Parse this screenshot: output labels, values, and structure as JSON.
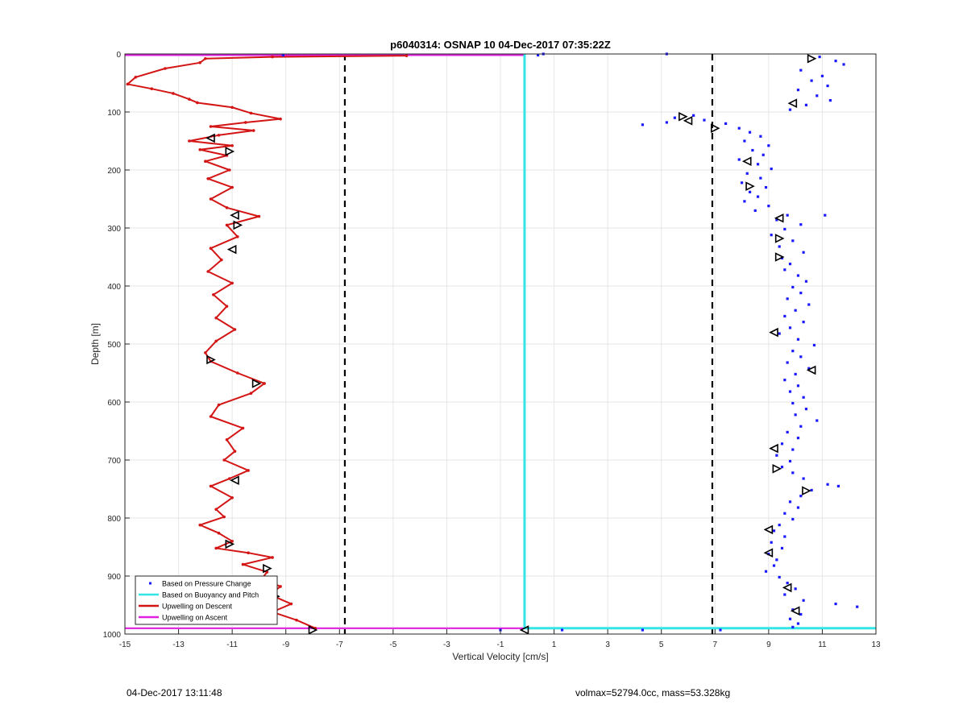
{
  "chart_data": {
    "type": "scatter",
    "title": "p6040314: OSNAP 10 04-Dec-2017 07:35:22Z",
    "xlabel": "Vertical Velocity [cm/s]",
    "ylabel": "Depth [m]",
    "xlim": [
      -15,
      13
    ],
    "ylim": [
      0,
      1000
    ],
    "y_reversed": true,
    "grid": true,
    "xticks": [
      -15,
      -13,
      -11,
      -9,
      -7,
      -5,
      -3,
      -1,
      1,
      3,
      5,
      7,
      9,
      11,
      13
    ],
    "yticks": [
      0,
      100,
      200,
      300,
      400,
      500,
      600,
      700,
      800,
      900,
      1000
    ],
    "legend": {
      "placement": "bottom-left",
      "entries": [
        {
          "label": "Based on Pressure Change",
          "color": "#1a1aff",
          "style": "marker"
        },
        {
          "label": "Based on Buoyancy and Pitch",
          "color": "#33e5e5",
          "style": "line"
        },
        {
          "label": "Upwelling on Descent",
          "color": "#d41515",
          "style": "line"
        },
        {
          "label": "Upwelling on Ascent",
          "color": "#e020e0",
          "style": "line"
        }
      ]
    },
    "threshold_lines": [
      {
        "x": -6.8,
        "style": "dashed",
        "color": "#000000"
      },
      {
        "x": 6.9,
        "style": "dashed",
        "color": "#000000"
      }
    ],
    "series": [
      {
        "name": "Upwelling on Descent",
        "color": "#d41515",
        "points": [
          [
            -4.5,
            3
          ],
          [
            -9.5,
            5
          ],
          [
            -12.0,
            8
          ],
          [
            -12.2,
            15
          ],
          [
            -13.5,
            25
          ],
          [
            -14.6,
            40
          ],
          [
            -14.9,
            52
          ],
          [
            -14.0,
            60
          ],
          [
            -13.2,
            68
          ],
          [
            -12.6,
            78
          ],
          [
            -12.3,
            84
          ],
          [
            -11.0,
            92
          ],
          [
            -10.3,
            102
          ],
          [
            -9.2,
            112
          ],
          [
            -10.5,
            118
          ],
          [
            -11.8,
            125
          ],
          [
            -10.2,
            132
          ],
          [
            -11.5,
            140
          ],
          [
            -12.6,
            150
          ],
          [
            -11.0,
            158
          ],
          [
            -12.2,
            165
          ],
          [
            -11.2,
            175
          ],
          [
            -12.0,
            185
          ],
          [
            -11.1,
            200
          ],
          [
            -11.9,
            215
          ],
          [
            -11.0,
            230
          ],
          [
            -11.8,
            250
          ],
          [
            -11.2,
            265
          ],
          [
            -10.0,
            280
          ],
          [
            -11.2,
            295
          ],
          [
            -10.8,
            315
          ],
          [
            -11.8,
            335
          ],
          [
            -11.4,
            355
          ],
          [
            -11.9,
            375
          ],
          [
            -11.0,
            395
          ],
          [
            -11.7,
            415
          ],
          [
            -11.2,
            435
          ],
          [
            -11.6,
            455
          ],
          [
            -10.9,
            475
          ],
          [
            -11.6,
            495
          ],
          [
            -12.0,
            515
          ],
          [
            -11.8,
            530
          ],
          [
            -10.8,
            550
          ],
          [
            -9.8,
            568
          ],
          [
            -10.3,
            585
          ],
          [
            -11.5,
            605
          ],
          [
            -11.8,
            625
          ],
          [
            -10.6,
            645
          ],
          [
            -11.2,
            665
          ],
          [
            -10.9,
            685
          ],
          [
            -11.3,
            700
          ],
          [
            -10.4,
            718
          ],
          [
            -11.1,
            732
          ],
          [
            -11.8,
            745
          ],
          [
            -11.0,
            765
          ],
          [
            -11.6,
            785
          ],
          [
            -11.3,
            798
          ],
          [
            -12.2,
            812
          ],
          [
            -11.5,
            826
          ],
          [
            -11.0,
            840
          ],
          [
            -11.6,
            852
          ],
          [
            -10.4,
            860
          ],
          [
            -9.5,
            868
          ],
          [
            -10.6,
            880
          ],
          [
            -9.7,
            893
          ],
          [
            -9.9,
            905
          ],
          [
            -9.2,
            918
          ],
          [
            -9.6,
            932
          ],
          [
            -8.8,
            948
          ],
          [
            -9.5,
            962
          ],
          [
            -8.6,
            976
          ],
          [
            -7.9,
            990
          ]
        ]
      },
      {
        "name": "Upwelling on Ascent",
        "color": "#e020e0",
        "points": [
          [
            -15,
            2
          ],
          [
            -12,
            2
          ],
          [
            -8,
            2
          ],
          [
            -4,
            2
          ],
          [
            -0.1,
            2
          ],
          [
            -15,
            990
          ],
          [
            -10,
            990
          ],
          [
            -4,
            990
          ],
          [
            -0.1,
            990
          ]
        ]
      },
      {
        "name": "Based on Buoyancy and Pitch",
        "color": "#33e5e5",
        "points": [
          [
            -0.1,
            0
          ],
          [
            -0.1,
            200
          ],
          [
            -0.1,
            400
          ],
          [
            -0.1,
            600
          ],
          [
            -0.1,
            800
          ],
          [
            -0.1,
            990
          ],
          [
            13,
            990
          ]
        ]
      },
      {
        "name": "Based on Pressure Change",
        "color": "#1a1aff",
        "points": [
          [
            10.9,
            5
          ],
          [
            11.5,
            12
          ],
          [
            11.8,
            18
          ],
          [
            10.2,
            28
          ],
          [
            11.0,
            38
          ],
          [
            10.6,
            46
          ],
          [
            11.2,
            55
          ],
          [
            10.1,
            62
          ],
          [
            10.8,
            72
          ],
          [
            11.3,
            80
          ],
          [
            10.4,
            88
          ],
          [
            9.8,
            96
          ],
          [
            6.2,
            106
          ],
          [
            5.5,
            110
          ],
          [
            4.3,
            122
          ],
          [
            5.2,
            118
          ],
          [
            6.6,
            114
          ],
          [
            7.4,
            120
          ],
          [
            7.9,
            128
          ],
          [
            8.3,
            135
          ],
          [
            8.7,
            142
          ],
          [
            8.1,
            150
          ],
          [
            9.0,
            158
          ],
          [
            8.4,
            166
          ],
          [
            8.8,
            174
          ],
          [
            7.9,
            182
          ],
          [
            8.6,
            190
          ],
          [
            9.1,
            198
          ],
          [
            8.2,
            206
          ],
          [
            8.7,
            214
          ],
          [
            8.0,
            222
          ],
          [
            8.9,
            230
          ],
          [
            8.3,
            238
          ],
          [
            8.6,
            246
          ],
          [
            8.1,
            254
          ],
          [
            9.0,
            262
          ],
          [
            8.5,
            270
          ],
          [
            9.7,
            278
          ],
          [
            11.1,
            278
          ],
          [
            9.3,
            286
          ],
          [
            10.2,
            294
          ],
          [
            9.6,
            302
          ],
          [
            9.1,
            312
          ],
          [
            9.9,
            322
          ],
          [
            9.4,
            332
          ],
          [
            10.3,
            342
          ],
          [
            9.5,
            352
          ],
          [
            9.8,
            362
          ],
          [
            9.6,
            372
          ],
          [
            10.1,
            382
          ],
          [
            10.4,
            392
          ],
          [
            9.9,
            402
          ],
          [
            10.2,
            412
          ],
          [
            9.7,
            422
          ],
          [
            10.5,
            432
          ],
          [
            10.0,
            442
          ],
          [
            9.6,
            452
          ],
          [
            10.3,
            462
          ],
          [
            9.8,
            472
          ],
          [
            9.4,
            482
          ],
          [
            10.1,
            492
          ],
          [
            10.7,
            502
          ],
          [
            9.9,
            512
          ],
          [
            10.2,
            522
          ],
          [
            9.7,
            532
          ],
          [
            10.5,
            542
          ],
          [
            10.0,
            552
          ],
          [
            9.6,
            562
          ],
          [
            10.1,
            572
          ],
          [
            9.8,
            582
          ],
          [
            10.3,
            592
          ],
          [
            9.9,
            602
          ],
          [
            10.4,
            612
          ],
          [
            10.0,
            622
          ],
          [
            10.8,
            632
          ],
          [
            10.2,
            642
          ],
          [
            9.7,
            652
          ],
          [
            10.1,
            662
          ],
          [
            9.5,
            672
          ],
          [
            9.9,
            682
          ],
          [
            9.3,
            692
          ],
          [
            9.8,
            702
          ],
          [
            9.5,
            712
          ],
          [
            9.9,
            722
          ],
          [
            10.3,
            732
          ],
          [
            11.2,
            742
          ],
          [
            11.6,
            745
          ],
          [
            10.6,
            752
          ],
          [
            10.2,
            762
          ],
          [
            9.8,
            772
          ],
          [
            10.1,
            782
          ],
          [
            9.6,
            792
          ],
          [
            9.9,
            802
          ],
          [
            9.4,
            812
          ],
          [
            9.2,
            822
          ],
          [
            9.6,
            832
          ],
          [
            9.1,
            842
          ],
          [
            9.5,
            852
          ],
          [
            9.0,
            862
          ],
          [
            9.3,
            872
          ],
          [
            9.2,
            882
          ],
          [
            8.9,
            892
          ],
          [
            9.4,
            902
          ],
          [
            9.7,
            912
          ],
          [
            10.0,
            922
          ],
          [
            9.6,
            932
          ],
          [
            10.3,
            942
          ],
          [
            11.5,
            948
          ],
          [
            12.3,
            953
          ],
          [
            9.9,
            958
          ],
          [
            10.2,
            966
          ],
          [
            9.8,
            974
          ],
          [
            10.1,
            982
          ],
          [
            9.9,
            988
          ],
          [
            1.3,
            993
          ],
          [
            4.3,
            993
          ],
          [
            7.2,
            993
          ],
          [
            -1.0,
            993
          ],
          [
            -9.1,
            2
          ],
          [
            5.2,
            0
          ],
          [
            0.6,
            0
          ],
          [
            0.4,
            2
          ]
        ]
      }
    ],
    "triangle_markers": [
      {
        "x": 10.6,
        "y": 8
      },
      {
        "x": 9.9,
        "y": 85
      },
      {
        "x": 5.8,
        "y": 108
      },
      {
        "x": 6.0,
        "y": 115
      },
      {
        "x": 7.0,
        "y": 128
      },
      {
        "x": -11.8,
        "y": 145
      },
      {
        "x": -11.1,
        "y": 168
      },
      {
        "x": 8.2,
        "y": 185
      },
      {
        "x": 8.3,
        "y": 228
      },
      {
        "x": -10.9,
        "y": 278
      },
      {
        "x": -10.8,
        "y": 295
      },
      {
        "x": 9.4,
        "y": 283
      },
      {
        "x": 9.4,
        "y": 318
      },
      {
        "x": -11.0,
        "y": 337
      },
      {
        "x": 9.4,
        "y": 350
      },
      {
        "x": 9.2,
        "y": 480
      },
      {
        "x": -11.8,
        "y": 527
      },
      {
        "x": 10.6,
        "y": 545
      },
      {
        "x": -10.1,
        "y": 568
      },
      {
        "x": 9.2,
        "y": 680
      },
      {
        "x": 9.3,
        "y": 715
      },
      {
        "x": -10.9,
        "y": 735
      },
      {
        "x": 10.4,
        "y": 753
      },
      {
        "x": 9.0,
        "y": 820
      },
      {
        "x": -11.1,
        "y": 845
      },
      {
        "x": 9.0,
        "y": 860
      },
      {
        "x": -9.7,
        "y": 887
      },
      {
        "x": 9.7,
        "y": 920
      },
      {
        "x": -9.4,
        "y": 935
      },
      {
        "x": 10.0,
        "y": 960
      },
      {
        "x": -8.0,
        "y": 993
      },
      {
        "x": -0.1,
        "y": 993
      }
    ]
  },
  "footer": {
    "left_text": "04-Dec-2017 13:11:48",
    "right_text": "volmax=52794.0cc, mass=53.328kg"
  }
}
